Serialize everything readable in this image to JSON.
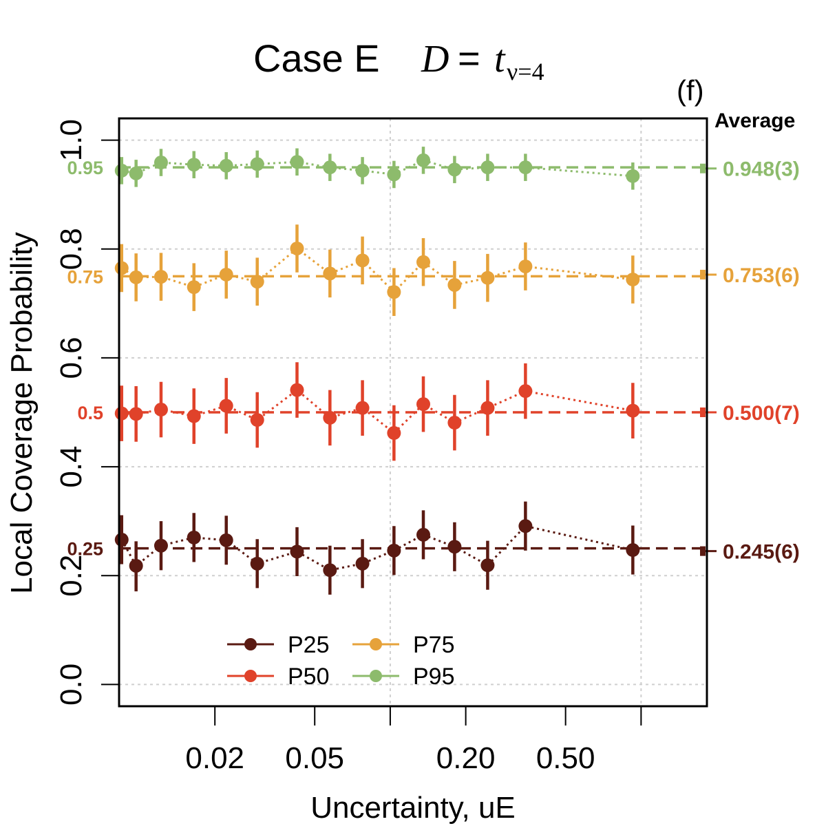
{
  "chart_data": {
    "type": "scatter",
    "title": {
      "prefix": "Case E",
      "math_var": "D",
      "math_eq": "=",
      "math_t": "t",
      "math_sub": "ν=4"
    },
    "panel_tag": "(f)",
    "average_header": "Average",
    "xlabel": "Uncertainty, uE",
    "ylabel": "Local Coverage Probability",
    "x_scale": "log",
    "x_range": [
      0.0083,
      1.83
    ],
    "x_ticks": [
      {
        "value": 0.02,
        "label": "0.02"
      },
      {
        "value": 0.05,
        "label": "0.05"
      },
      {
        "value": 0.1,
        "label": ""
      },
      {
        "value": 0.2,
        "label": "0.20"
      },
      {
        "value": 0.5,
        "label": "0.50"
      },
      {
        "value": 1.0,
        "label": ""
      }
    ],
    "x_gridlines": [
      0.1,
      1.0
    ],
    "y_range": [
      -0.04,
      1.04
    ],
    "y_ticks": [
      {
        "value": 0.0,
        "label": "0.0"
      },
      {
        "value": 0.2,
        "label": "0.2"
      },
      {
        "value": 0.4,
        "label": "0.4"
      },
      {
        "value": 0.6,
        "label": "0.6"
      },
      {
        "value": 0.8,
        "label": "0.8"
      },
      {
        "value": 1.0,
        "label": "1.0"
      }
    ],
    "grid": true,
    "x": [
      0.0085,
      0.0097,
      0.0122,
      0.0165,
      0.0222,
      0.0295,
      0.0425,
      0.0575,
      0.0775,
      0.1035,
      0.1355,
      0.1805,
      0.2445,
      0.346,
      0.927
    ],
    "series": [
      {
        "name": "P25",
        "color": "#5a1a12",
        "nominal": 0.25,
        "nominal_label": "0.25",
        "average": 0.245,
        "average_label": "0.245(6)",
        "values": [
          0.266,
          0.218,
          0.255,
          0.27,
          0.265,
          0.222,
          0.244,
          0.21,
          0.222,
          0.246,
          0.275,
          0.253,
          0.219,
          0.291,
          0.247
        ],
        "err_low": [
          0.221,
          0.171,
          0.21,
          0.225,
          0.22,
          0.177,
          0.199,
          0.165,
          0.177,
          0.201,
          0.23,
          0.208,
          0.174,
          0.246,
          0.202
        ],
        "err_high": [
          0.311,
          0.263,
          0.3,
          0.315,
          0.31,
          0.267,
          0.289,
          0.255,
          0.267,
          0.291,
          0.32,
          0.298,
          0.264,
          0.336,
          0.292
        ]
      },
      {
        "name": "P50",
        "color": "#e0422a",
        "nominal": 0.5,
        "nominal_label": "0.5",
        "average": 0.5,
        "average_label": "0.500(7)",
        "values": [
          0.498,
          0.497,
          0.505,
          0.493,
          0.512,
          0.486,
          0.541,
          0.49,
          0.508,
          0.462,
          0.515,
          0.481,
          0.508,
          0.539,
          0.503
        ],
        "err_low": [
          0.447,
          0.446,
          0.454,
          0.442,
          0.461,
          0.435,
          0.49,
          0.439,
          0.457,
          0.411,
          0.464,
          0.43,
          0.457,
          0.488,
          0.452
        ],
        "err_high": [
          0.549,
          0.548,
          0.556,
          0.544,
          0.563,
          0.537,
          0.592,
          0.541,
          0.559,
          0.513,
          0.566,
          0.532,
          0.559,
          0.59,
          0.554
        ]
      },
      {
        "name": "P75",
        "color": "#e6a23a",
        "nominal": 0.75,
        "nominal_label": "0.75",
        "average": 0.753,
        "average_label": "0.753(6)",
        "values": [
          0.765,
          0.748,
          0.749,
          0.73,
          0.753,
          0.74,
          0.801,
          0.755,
          0.779,
          0.721,
          0.776,
          0.734,
          0.747,
          0.768,
          0.744
        ],
        "err_low": [
          0.721,
          0.704,
          0.705,
          0.686,
          0.709,
          0.696,
          0.757,
          0.711,
          0.735,
          0.677,
          0.732,
          0.69,
          0.703,
          0.724,
          0.7
        ],
        "err_high": [
          0.809,
          0.792,
          0.793,
          0.774,
          0.797,
          0.784,
          0.845,
          0.799,
          0.823,
          0.765,
          0.82,
          0.778,
          0.791,
          0.812,
          0.788
        ]
      },
      {
        "name": "P95",
        "color": "#8dbb6c",
        "nominal": 0.95,
        "nominal_label": "0.95",
        "average": 0.948,
        "average_label": "0.948(3)",
        "values": [
          0.944,
          0.939,
          0.959,
          0.955,
          0.953,
          0.956,
          0.96,
          0.95,
          0.944,
          0.937,
          0.963,
          0.946,
          0.95,
          0.95,
          0.934
        ],
        "err_low": [
          0.919,
          0.914,
          0.934,
          0.93,
          0.928,
          0.931,
          0.935,
          0.925,
          0.919,
          0.912,
          0.938,
          0.921,
          0.925,
          0.925,
          0.909
        ],
        "err_high": [
          0.969,
          0.964,
          0.984,
          0.98,
          0.978,
          0.981,
          0.985,
          0.975,
          0.969,
          0.962,
          0.988,
          0.971,
          0.975,
          0.975,
          0.959
        ]
      }
    ],
    "legend": {
      "position": "bottom-left",
      "columns": [
        [
          "P25",
          "P50"
        ],
        [
          "P75",
          "P95"
        ]
      ]
    }
  }
}
